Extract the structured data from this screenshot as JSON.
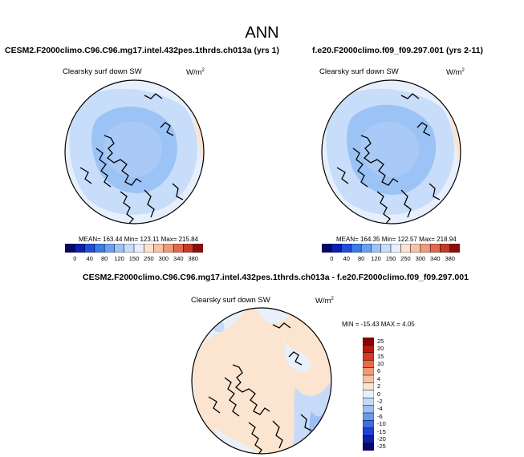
{
  "page": {
    "title": "ANN"
  },
  "palette": {
    "abs_colors": [
      "#08086b",
      "#0b1fb0",
      "#1f4fd8",
      "#3d7be6",
      "#6a9ff0",
      "#9cc3f5",
      "#c7ddf9",
      "#e6effb",
      "#fbe3d0",
      "#f6c3a3",
      "#ef9a7a",
      "#e0684e",
      "#c33a28",
      "#8b0f0a"
    ],
    "diff_colors": [
      "#08086b",
      "#0d1fa8",
      "#1f43d0",
      "#3c6fe3",
      "#6b98ee",
      "#9ebff5",
      "#c7dbf9",
      "#e8f1fb",
      "#fbe4d0",
      "#f7c2a2",
      "#f19b76",
      "#e86a48",
      "#d63a22",
      "#b81810",
      "#8b0000"
    ]
  },
  "chart_data": [
    {
      "type": "heatmap",
      "projection": "north polar stereographic",
      "title": "CESM2.F2000climo.C96.C96.mg17.intel.432pes.1thrds.ch013a (yrs 1)",
      "variable": "Clearsky surf down SW",
      "units": "W/m",
      "units_exp": "2",
      "stats": "MEAN= 163.44  Min= 123.11  Max= 215.84",
      "mean": 163.44,
      "min": 123.11,
      "max": 215.84,
      "levels": [
        "0",
        "40",
        "80",
        "120",
        "150",
        "250",
        "300",
        "340",
        "380"
      ]
    },
    {
      "type": "heatmap",
      "projection": "north polar stereographic",
      "title": "f.e20.F2000climo.f09_f09.297.001 (yrs 2-11)",
      "variable": "Clearsky surf down SW",
      "units": "W/m",
      "units_exp": "2",
      "stats": "MEAN= 164.35  Min= 122.57  Max= 218.94",
      "mean": 164.35,
      "min": 122.57,
      "max": 218.94,
      "levels": [
        "0",
        "40",
        "80",
        "120",
        "150",
        "250",
        "300",
        "340",
        "380"
      ]
    },
    {
      "type": "heatmap",
      "projection": "north polar stereographic",
      "title": "CESM2.F2000climo.C96.C96.mg17.intel.432pes.1thrds.ch013a - f.e20.F2000climo.f09_f09.297.001",
      "variable": "Clearsky surf down SW",
      "units": "W/m",
      "units_exp": "2",
      "stats": "MIN = -15.43 MAX =  4.05",
      "min": -15.43,
      "max": 4.05,
      "levels": [
        "25",
        "20",
        "15",
        "10",
        "6",
        "4",
        "2",
        "0",
        "-2",
        "-4",
        "-6",
        "-10",
        "-15",
        "-20",
        "-25"
      ]
    }
  ]
}
